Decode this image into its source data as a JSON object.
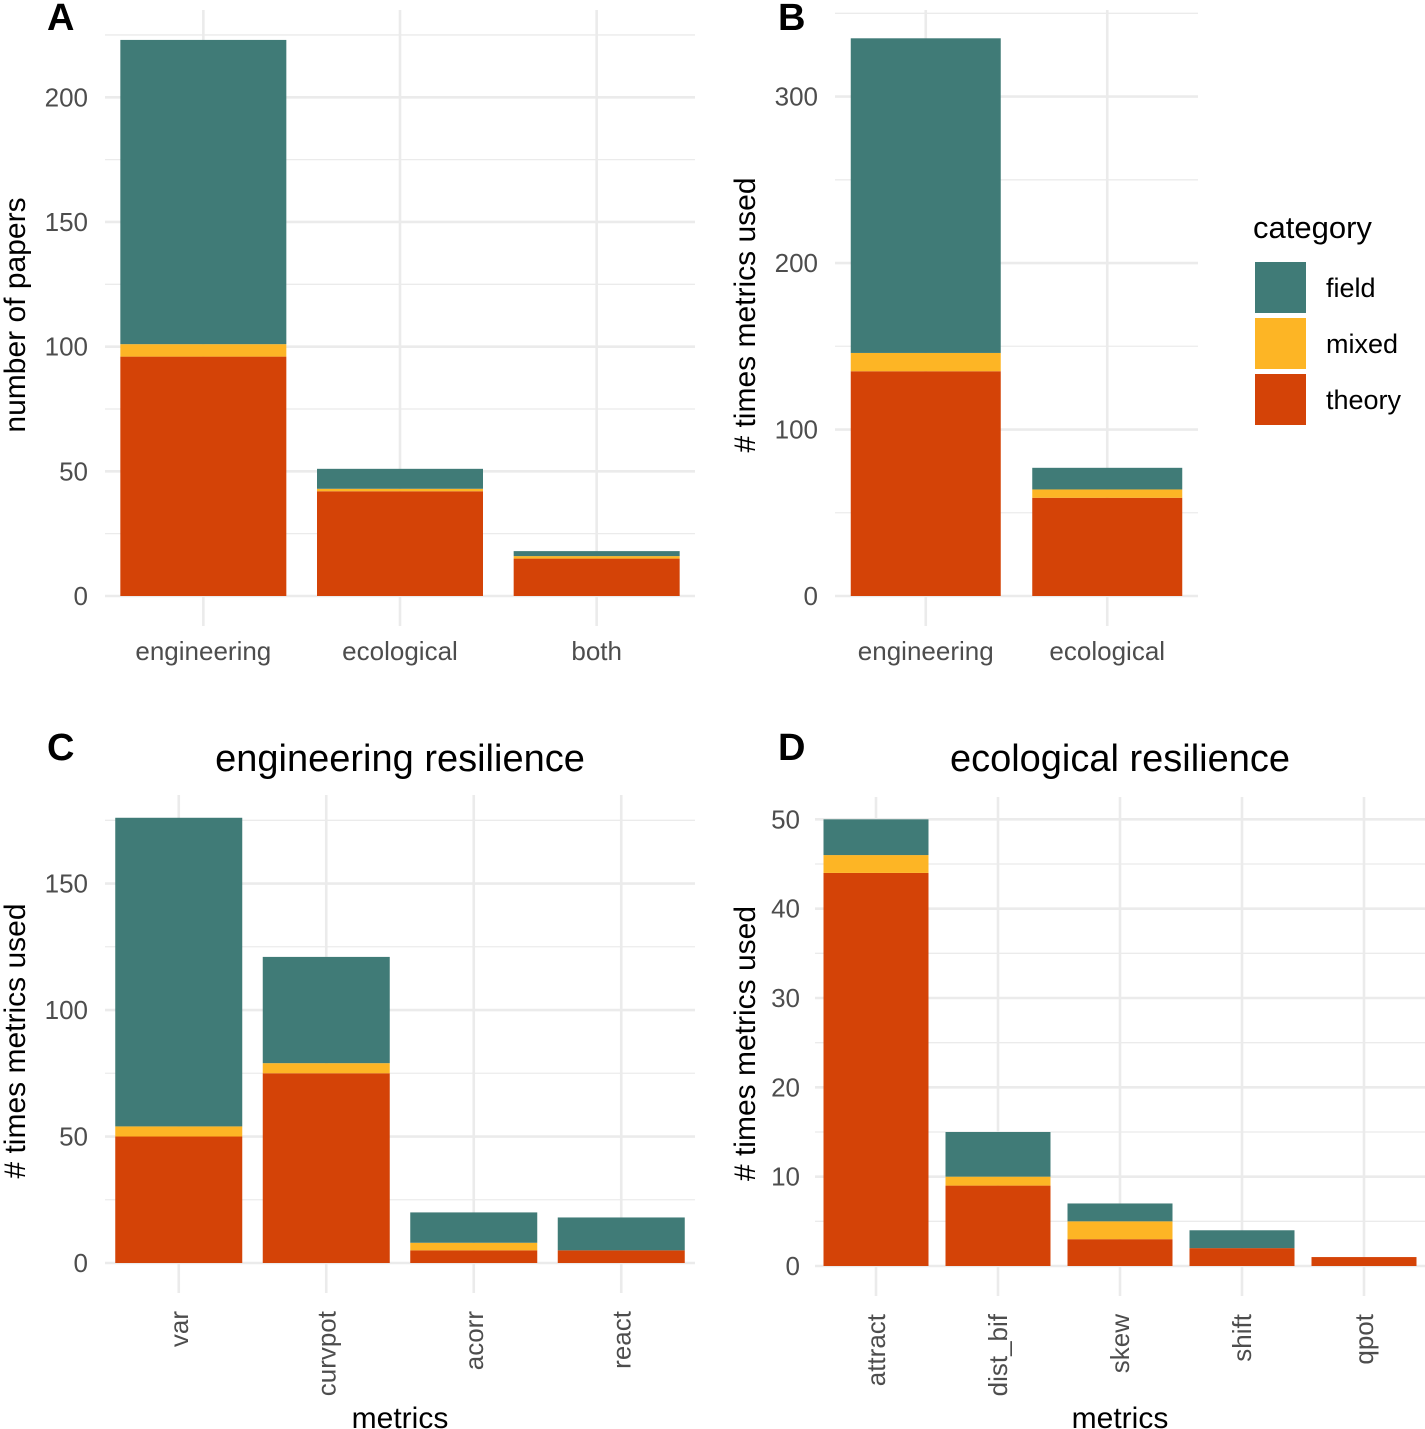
{
  "colors": {
    "field": "#407B77",
    "mixed": "#FDB525",
    "theory": "#D44307",
    "grid": "#EBEBEB"
  },
  "legend": {
    "title": "category",
    "items": [
      "field",
      "mixed",
      "theory"
    ]
  },
  "chart_data": [
    {
      "panel": "A",
      "type": "bar",
      "stacked": true,
      "title": "",
      "xlabel": "",
      "ylabel": "number of papers",
      "ylim": [
        0,
        235
      ],
      "yticks": [
        0,
        50,
        100,
        150,
        200
      ],
      "grid": true,
      "categories": [
        "engineering",
        "ecological",
        "both"
      ],
      "series": [
        {
          "name": "theory",
          "values": [
            96,
            42,
            15
          ]
        },
        {
          "name": "mixed",
          "values": [
            5,
            1,
            1
          ]
        },
        {
          "name": "field",
          "values": [
            122,
            8,
            2
          ]
        }
      ]
    },
    {
      "panel": "B",
      "type": "bar",
      "stacked": true,
      "title": "",
      "xlabel": "",
      "ylabel": "# times metrics used",
      "ylim": [
        0,
        352
      ],
      "yticks": [
        0,
        100,
        200,
        300
      ],
      "grid": true,
      "categories": [
        "engineering",
        "ecological"
      ],
      "series": [
        {
          "name": "theory",
          "values": [
            135,
            59
          ]
        },
        {
          "name": "mixed",
          "values": [
            11,
            5
          ]
        },
        {
          "name": "field",
          "values": [
            189,
            13
          ]
        }
      ]
    },
    {
      "panel": "C",
      "type": "bar",
      "stacked": true,
      "title": "engineering resilience",
      "xlabel": "metrics",
      "ylabel": "# times metrics used",
      "ylim": [
        0,
        185
      ],
      "yticks": [
        0,
        50,
        100,
        150
      ],
      "grid": true,
      "categories": [
        "var",
        "curvpot",
        "acorr",
        "react"
      ],
      "series": [
        {
          "name": "theory",
          "values": [
            50,
            75,
            5,
            5
          ]
        },
        {
          "name": "mixed",
          "values": [
            4,
            4,
            3,
            0
          ]
        },
        {
          "name": "field",
          "values": [
            122,
            42,
            12,
            13
          ]
        }
      ]
    },
    {
      "panel": "D",
      "type": "bar",
      "stacked": true,
      "title": "ecological resilience",
      "xlabel": "metrics",
      "ylabel": "# times metrics used",
      "ylim": [
        0,
        52.5
      ],
      "yticks": [
        0,
        10,
        20,
        30,
        40,
        50
      ],
      "grid": true,
      "categories": [
        "attract",
        "dist_bif",
        "skew",
        "shift",
        "qpot"
      ],
      "series": [
        {
          "name": "theory",
          "values": [
            44,
            9,
            3,
            2,
            1
          ]
        },
        {
          "name": "mixed",
          "values": [
            2,
            1,
            2,
            0,
            0
          ]
        },
        {
          "name": "field",
          "values": [
            4,
            5,
            2,
            2,
            0
          ]
        }
      ]
    }
  ]
}
